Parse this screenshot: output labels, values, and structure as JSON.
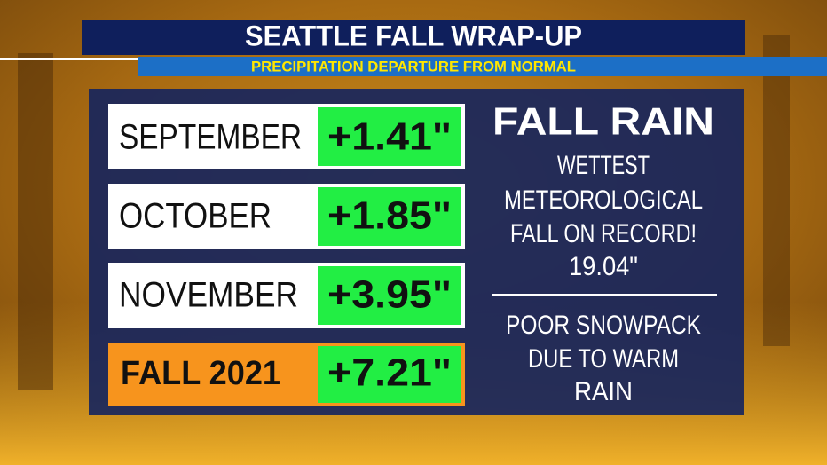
{
  "header": {
    "title": "SEATTLE FALL WRAP-UP",
    "subtitle": "PRECIPITATION DEPARTURE FROM NORMAL"
  },
  "table": {
    "rows": [
      [
        "SEPTEMBER",
        "+1.41\""
      ],
      [
        "OCTOBER",
        "+1.85\""
      ],
      [
        "NOVEMBER",
        "+3.95\""
      ],
      [
        "FALL 2021",
        "+7.21\""
      ]
    ]
  },
  "panel": {
    "heading": "FALL RAIN",
    "lines": [
      "WETTEST",
      "METEOROLOGICAL",
      "FALL ON RECORD!",
      "19.04\""
    ],
    "note": [
      "POOR SNOWPACK",
      "DUE TO WARM",
      "RAIN"
    ]
  }
}
